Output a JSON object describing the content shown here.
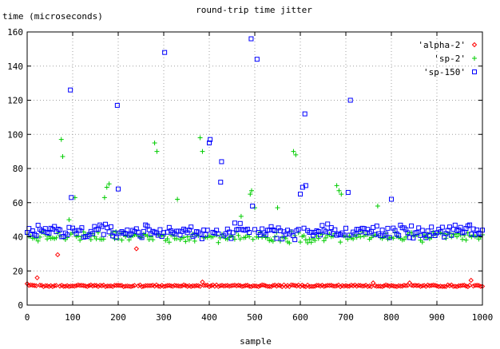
{
  "chart_data": {
    "type": "scatter",
    "title": "round-trip time jitter",
    "xlabel": "sample",
    "ylabel": "time (microseconds)",
    "xlim": [
      0,
      1000
    ],
    "ylim": [
      0,
      160
    ],
    "xticks": [
      0,
      100,
      200,
      300,
      400,
      500,
      600,
      700,
      800,
      900,
      1000
    ],
    "yticks": [
      0,
      20,
      40,
      60,
      80,
      100,
      120,
      140,
      160
    ],
    "grid": true,
    "legend_position": "top-right",
    "series": [
      {
        "name": "'alpha-2'",
        "color": "#ff0000",
        "marker": "diamond",
        "baseline": 11.3,
        "jitter": 0.5,
        "outliers": [
          [
            0,
            12.5
          ],
          [
            22,
            16
          ],
          [
            67,
            29.5
          ],
          [
            240,
            33
          ],
          [
            385,
            13.5
          ],
          [
            760,
            13
          ],
          [
            840,
            13
          ],
          [
            975,
            14.5
          ]
        ]
      },
      {
        "name": "'sp-2'",
        "color": "#00cc00",
        "marker": "plus",
        "baseline": 40,
        "jitter": 3,
        "outliers": [
          [
            75,
            97
          ],
          [
            78,
            87
          ],
          [
            92,
            50
          ],
          [
            105,
            63
          ],
          [
            170,
            63
          ],
          [
            175,
            69
          ],
          [
            180,
            71
          ],
          [
            195,
            43
          ],
          [
            280,
            95
          ],
          [
            285,
            90
          ],
          [
            330,
            62
          ],
          [
            380,
            98
          ],
          [
            385,
            90
          ],
          [
            470,
            52
          ],
          [
            490,
            65
          ],
          [
            493,
            67
          ],
          [
            500,
            57
          ],
          [
            550,
            57
          ],
          [
            585,
            90
          ],
          [
            590,
            88
          ],
          [
            680,
            70
          ],
          [
            685,
            67
          ],
          [
            690,
            65
          ],
          [
            770,
            58
          ]
        ]
      },
      {
        "name": "'sp-150'",
        "color": "#0000ff",
        "marker": "square",
        "baseline": 43,
        "jitter": 4,
        "outliers": [
          [
            95,
            126
          ],
          [
            97,
            63
          ],
          [
            198,
            117
          ],
          [
            200,
            68
          ],
          [
            302,
            148
          ],
          [
            400,
            95
          ],
          [
            402,
            97
          ],
          [
            425,
            72
          ],
          [
            427,
            84
          ],
          [
            492,
            156
          ],
          [
            495,
            58
          ],
          [
            505,
            144
          ],
          [
            600,
            65
          ],
          [
            605,
            69
          ],
          [
            610,
            112
          ],
          [
            612,
            70
          ],
          [
            705,
            66
          ],
          [
            710,
            120
          ],
          [
            800,
            62
          ]
        ]
      }
    ]
  }
}
